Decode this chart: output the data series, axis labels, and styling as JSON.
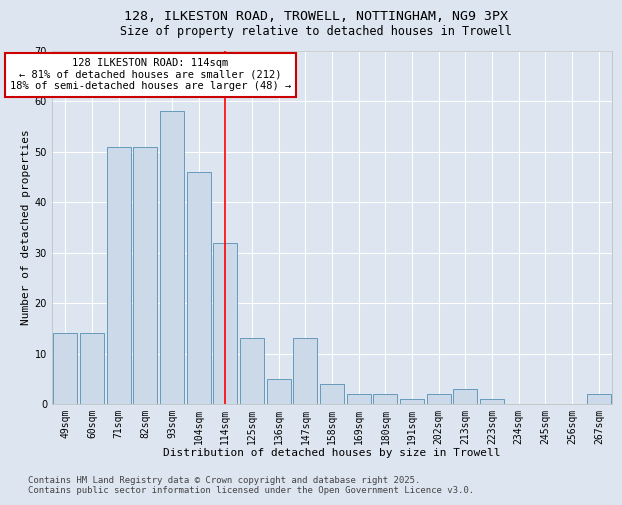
{
  "title_line1": "128, ILKESTON ROAD, TROWELL, NOTTINGHAM, NG9 3PX",
  "title_line2": "Size of property relative to detached houses in Trowell",
  "xlabel": "Distribution of detached houses by size in Trowell",
  "ylabel": "Number of detached properties",
  "categories": [
    "49sqm",
    "60sqm",
    "71sqm",
    "82sqm",
    "93sqm",
    "104sqm",
    "114sqm",
    "125sqm",
    "136sqm",
    "147sqm",
    "158sqm",
    "169sqm",
    "180sqm",
    "191sqm",
    "202sqm",
    "213sqm",
    "223sqm",
    "234sqm",
    "245sqm",
    "256sqm",
    "267sqm"
  ],
  "values": [
    14,
    14,
    51,
    51,
    58,
    46,
    32,
    13,
    5,
    13,
    4,
    2,
    2,
    1,
    2,
    3,
    1,
    0,
    0,
    0,
    2
  ],
  "bar_color": "#ccd9e8",
  "bar_edge_color": "#6699bb",
  "red_line_index": 6,
  "ylim": [
    0,
    70
  ],
  "yticks": [
    0,
    10,
    20,
    30,
    40,
    50,
    60,
    70
  ],
  "annotation_text": "128 ILKESTON ROAD: 114sqm\n← 81% of detached houses are smaller (212)\n18% of semi-detached houses are larger (48) →",
  "annotation_box_color": "#ffffff",
  "annotation_box_edge_color": "#cc0000",
  "footnote": "Contains HM Land Registry data © Crown copyright and database right 2025.\nContains public sector information licensed under the Open Government Licence v3.0.",
  "bg_color": "#dde5f0",
  "plot_bg_color": "#dde5f0",
  "grid_color": "#ffffff",
  "title_fontsize": 9.5,
  "subtitle_fontsize": 8.5,
  "axis_label_fontsize": 8,
  "tick_fontsize": 7,
  "annotation_fontsize": 7.5,
  "footnote_fontsize": 6.5
}
